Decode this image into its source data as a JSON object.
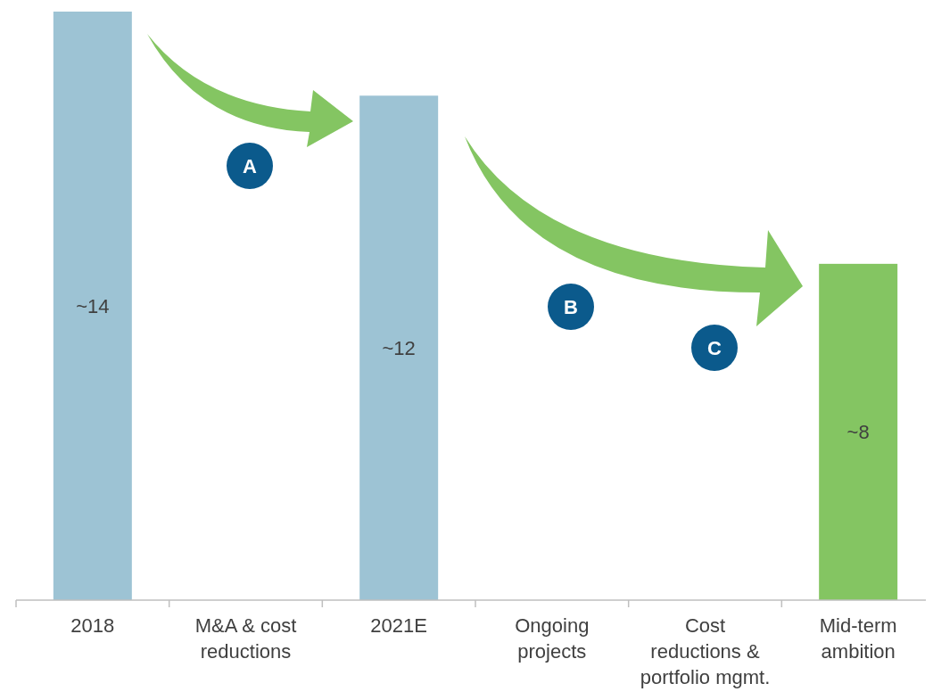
{
  "chart_data": {
    "type": "bar",
    "categories": [
      "2018",
      "M&A & cost reductions",
      "2021E",
      "Ongoing projects",
      "Cost reductions & portfolio mgmt.",
      "Mid-term ambition"
    ],
    "values": [
      14,
      null,
      12,
      null,
      null,
      8
    ],
    "value_labels": [
      "~14",
      null,
      "~12",
      null,
      null,
      "~8"
    ],
    "colors": [
      "#9dc3d4",
      null,
      "#9dc3d4",
      null,
      null,
      "#84c562"
    ],
    "annotations": [
      "A",
      "B",
      "C"
    ]
  }
}
